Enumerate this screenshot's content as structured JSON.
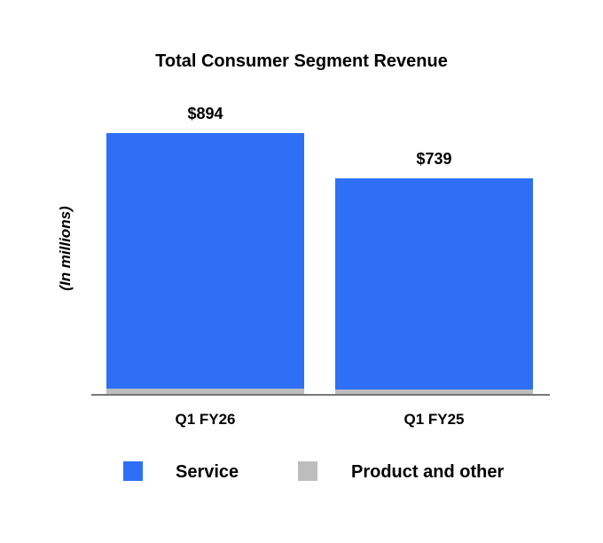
{
  "chart_data": {
    "type": "bar",
    "stacked": true,
    "title": "Total Consumer Segment Revenue",
    "ylabel": "(In millions)",
    "xlabel": "",
    "categories": [
      "Q1 FY26",
      "Q1 FY25"
    ],
    "series": [
      {
        "name": "Service",
        "color": "#2E6FF5",
        "values": [
          876,
          724
        ]
      },
      {
        "name": "Product and other",
        "color": "#BDBDBD",
        "values": [
          18,
          15
        ]
      }
    ],
    "totals": [
      894,
      739
    ],
    "total_labels": [
      "$894",
      "$739"
    ],
    "ylim": [
      0,
      900
    ],
    "grid": false,
    "legend_position": "bottom"
  }
}
